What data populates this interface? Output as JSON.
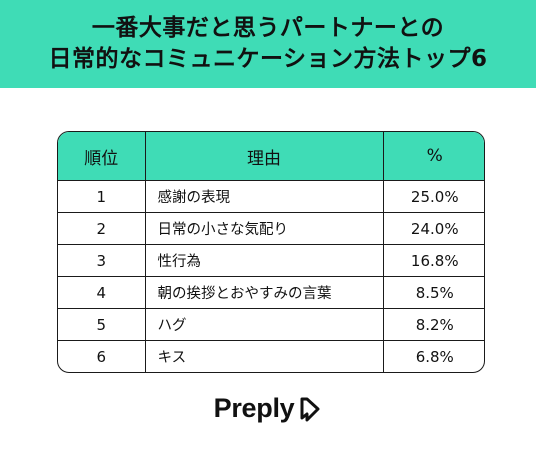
{
  "title": {
    "line1": "一番大事だと思うパートナーとの",
    "line2": "日常的なコミュニケーション方法トップ6"
  },
  "table": {
    "headers": {
      "rank": "順位",
      "reason": "理由",
      "percent": "%"
    },
    "rows": [
      {
        "rank": "1",
        "reason": "感謝の表現",
        "percent": "25.0%"
      },
      {
        "rank": "2",
        "reason": "日常の小さな気配り",
        "percent": "24.0%"
      },
      {
        "rank": "3",
        "reason": "性行為",
        "percent": "16.8%"
      },
      {
        "rank": "4",
        "reason": "朝の挨拶とおやすみの言葉",
        "percent": "8.5%"
      },
      {
        "rank": "5",
        "reason": "ハグ",
        "percent": "8.2%"
      },
      {
        "rank": "6",
        "reason": "キス",
        "percent": "6.8%"
      }
    ]
  },
  "chart_data": {
    "type": "table",
    "title": "一番大事だと思うパートナーとの日常的なコミュニケーション方法トップ6",
    "columns": [
      "順位",
      "理由",
      "%"
    ],
    "categories": [
      "感謝の表現",
      "日常の小さな気配り",
      "性行為",
      "朝の挨拶とおやすみの言葉",
      "ハグ",
      "キス"
    ],
    "values": [
      25.0,
      24.0,
      16.8,
      8.5,
      8.2,
      6.8
    ]
  },
  "brand": {
    "name": "Preply",
    "icon": "preply-logo-icon"
  },
  "colors": {
    "accent": "#3fdcb6",
    "text": "#111111",
    "border": "#1a1a1a"
  }
}
